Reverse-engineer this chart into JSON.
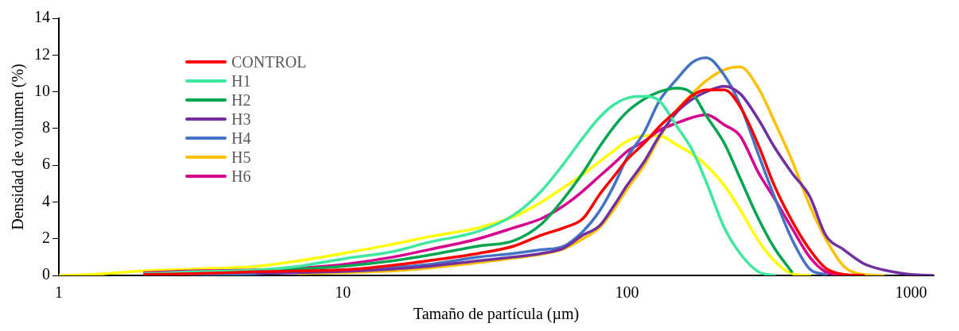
{
  "chart_data": {
    "type": "line",
    "xlabel": "Tamaño de partícula (µm)",
    "ylabel": "Densidad de volumen (%)",
    "log": "x",
    "xlim": [
      1,
      1200
    ],
    "xticks": [
      1,
      10,
      100,
      1000
    ],
    "ylim": [
      0,
      14
    ],
    "yticks": [
      0,
      2,
      4,
      6,
      8,
      10,
      12,
      14
    ],
    "grid": false,
    "legend": "top left",
    "marker": "none",
    "line_style": "solid",
    "x": [
      1,
      1.3,
      2,
      3,
      5,
      7,
      10,
      15,
      20,
      30,
      40,
      50,
      60,
      70,
      80,
      90,
      100,
      115,
      130,
      150,
      170,
      190,
      220,
      250,
      290,
      330,
      380,
      440,
      500,
      580,
      680,
      800,
      1000,
      1200
    ],
    "series": [
      {
        "name": "CONTROL",
        "color": "#ff0000",
        "values": [
          null,
          null,
          0.05,
          0.1,
          0.2,
          0.25,
          0.3,
          0.55,
          0.8,
          1.2,
          1.6,
          2.2,
          2.6,
          3.1,
          4.4,
          5.4,
          6.3,
          7.2,
          8.1,
          9.0,
          9.8,
          10.1,
          10.1,
          9.2,
          7.1,
          4.9,
          3.0,
          1.4,
          0.4,
          0.05,
          0,
          null,
          null,
          null
        ]
      },
      {
        "name": "H1",
        "color": "#3fe8a0",
        "values": [
          null,
          null,
          0.1,
          0.2,
          0.3,
          0.5,
          0.9,
          1.3,
          1.8,
          2.4,
          3.3,
          4.6,
          6.1,
          7.5,
          8.6,
          9.3,
          9.65,
          9.75,
          9.5,
          8.1,
          6.8,
          5.1,
          2.6,
          1.2,
          0.2,
          0,
          null,
          null,
          null,
          null,
          null,
          null,
          null,
          null
        ]
      },
      {
        "name": "H2",
        "color": "#00a550",
        "values": [
          null,
          null,
          null,
          0.15,
          0.25,
          0.35,
          0.5,
          0.8,
          1.1,
          1.6,
          1.9,
          2.8,
          4.2,
          5.6,
          7.0,
          8.1,
          8.9,
          9.6,
          10.0,
          10.2,
          9.9,
          8.7,
          7.2,
          5.3,
          3.1,
          1.5,
          0.2,
          null,
          null,
          null,
          null,
          null,
          null,
          null
        ]
      },
      {
        "name": "H3",
        "color": "#7030a0",
        "values": [
          null,
          null,
          null,
          null,
          0.1,
          0.15,
          0.22,
          0.35,
          0.5,
          0.8,
          1.0,
          1.2,
          1.5,
          2.2,
          2.7,
          3.8,
          4.9,
          6.2,
          7.6,
          8.9,
          9.6,
          10.0,
          10.3,
          9.9,
          8.5,
          7.0,
          5.6,
          4.3,
          2.2,
          1.4,
          0.65,
          0.3,
          0.05,
          0
        ]
      },
      {
        "name": "H4",
        "color": "#4472c4",
        "values": [
          null,
          null,
          0,
          0.05,
          0.1,
          0.2,
          0.3,
          0.45,
          0.6,
          1.0,
          1.2,
          1.4,
          1.6,
          2.4,
          3.5,
          4.9,
          6.4,
          7.8,
          9.5,
          10.7,
          11.6,
          11.85,
          10.9,
          9.3,
          6.6,
          4.3,
          2.0,
          0.35,
          0.05,
          null,
          null,
          null,
          null,
          null
        ]
      },
      {
        "name": "H5",
        "color": "#ffc000",
        "values": [
          null,
          null,
          null,
          null,
          null,
          0.1,
          0.15,
          0.25,
          0.4,
          0.7,
          0.95,
          1.15,
          1.45,
          2.0,
          2.6,
          3.6,
          4.7,
          6.0,
          7.5,
          9.0,
          9.9,
          10.6,
          11.2,
          11.35,
          10.2,
          8.4,
          6.3,
          3.8,
          2.0,
          0.5,
          0.05,
          0,
          null,
          null
        ]
      },
      {
        "name": "H6",
        "color": "#d6008f",
        "values": [
          null,
          null,
          0.15,
          0.25,
          0.3,
          0.4,
          0.6,
          1.0,
          1.4,
          2.0,
          2.6,
          3.1,
          3.8,
          4.6,
          5.4,
          6.1,
          6.75,
          7.3,
          7.9,
          8.3,
          8.6,
          8.75,
          8.2,
          7.6,
          5.6,
          4.2,
          2.6,
          1.0,
          0.2,
          0,
          null,
          null,
          null,
          null
        ]
      },
      {
        "color": "#ffff00",
        "values": [
          0,
          0.05,
          0.25,
          0.35,
          0.5,
          0.8,
          1.2,
          1.7,
          2.1,
          2.6,
          3.2,
          4.0,
          4.8,
          5.5,
          6.2,
          6.8,
          7.3,
          7.6,
          7.6,
          7.1,
          6.6,
          6.0,
          4.9,
          3.6,
          1.9,
          0.8,
          0.1,
          0,
          null,
          null,
          null,
          null,
          null,
          null
        ]
      }
    ]
  }
}
